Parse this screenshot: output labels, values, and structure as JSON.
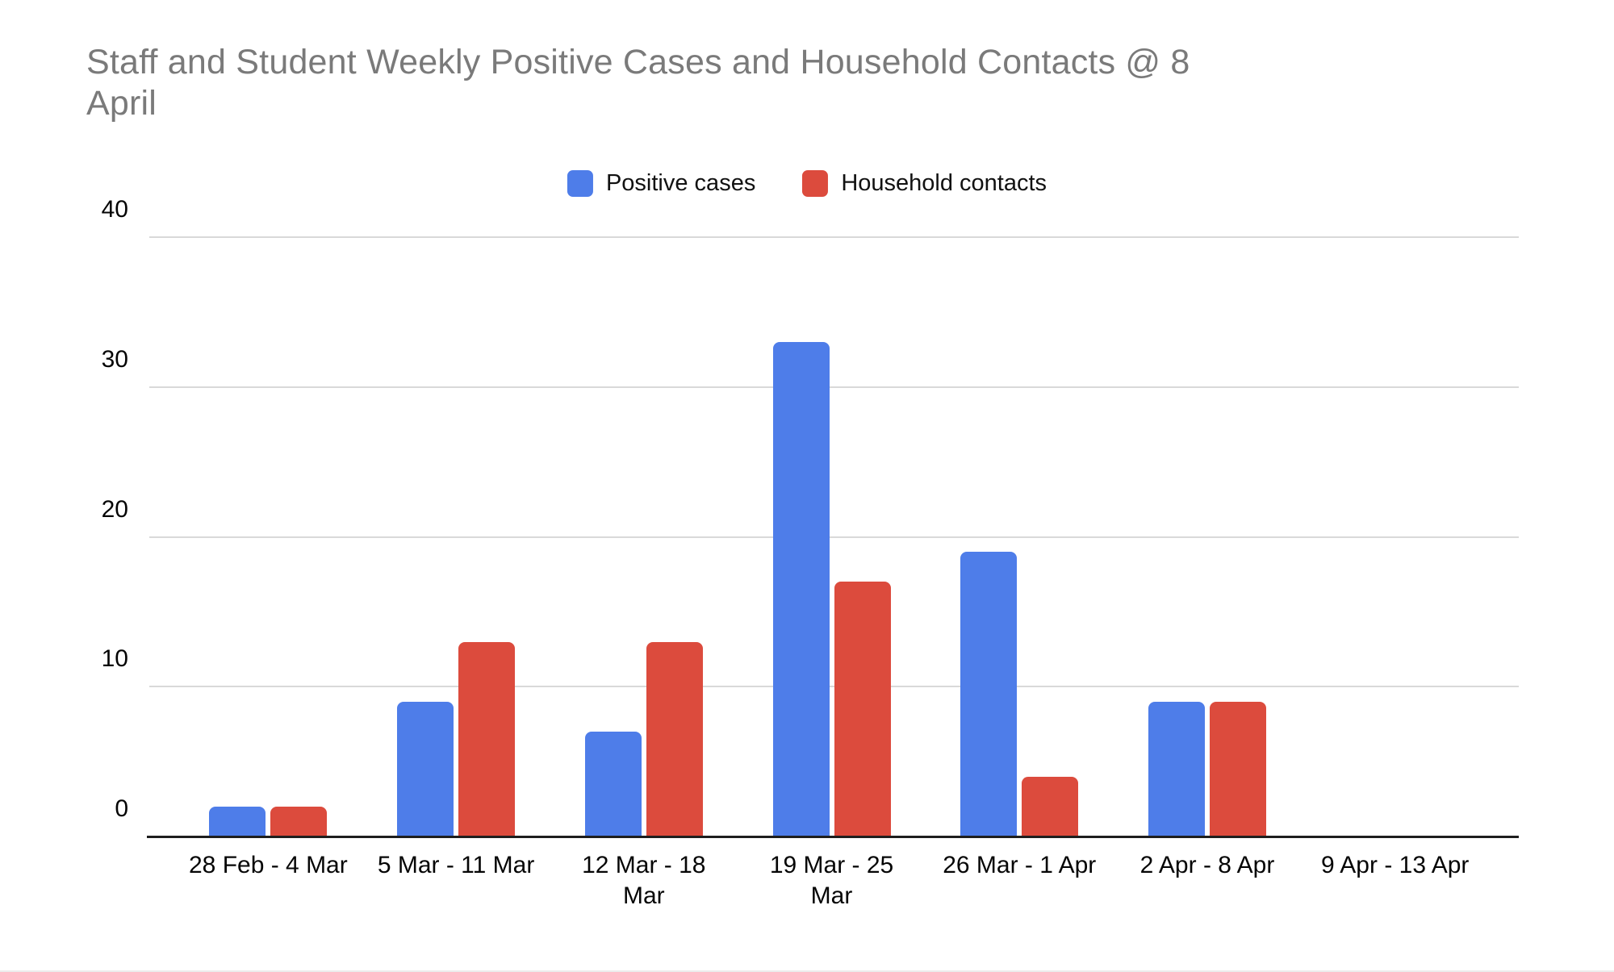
{
  "window": {
    "background_color": "#ffffff"
  },
  "chart_data": {
    "type": "bar",
    "title": "Staff and Student Weekly Positive Cases and Household Contacts @ 8 April",
    "title_display": "Staff and Student Weekly Positive Cases and Household Contacts @ 8\nApril",
    "title_color": "#7a7a7a",
    "categories": [
      "28 Feb - 4 Mar",
      "5 Mar - 11 Mar",
      "12 Mar - 18 Mar",
      "19 Mar - 25 Mar",
      "26 Mar - 1 Apr",
      "2 Apr - 8 Apr",
      "9 Apr - 13 Apr"
    ],
    "category_tick_display": [
      "28 Feb - 4 Mar",
      "5 Mar - 11 Mar",
      "12 Mar - 18\nMar",
      "19 Mar - 25\nMar",
      "26 Mar - 1 Apr",
      "2 Apr - 8 Apr",
      "9 Apr - 13 Apr"
    ],
    "series": [
      {
        "name": "Positive cases",
        "color": "#4e7de9",
        "values": [
          2,
          9,
          7,
          33,
          19,
          9,
          0
        ]
      },
      {
        "name": "Household contacts",
        "color": "#dc4b3d",
        "values": [
          2,
          13,
          13,
          17,
          4,
          9,
          0
        ]
      }
    ],
    "xlabel": "",
    "ylabel": "",
    "yticks": [
      0,
      10,
      20,
      30,
      40
    ],
    "ylim": [
      0,
      40
    ],
    "grid": true,
    "gridline_color": "#d9d9d9",
    "axis_line_color": "#1e1e1e",
    "tick_label_color": "#050505",
    "legend_position": "top-center"
  }
}
